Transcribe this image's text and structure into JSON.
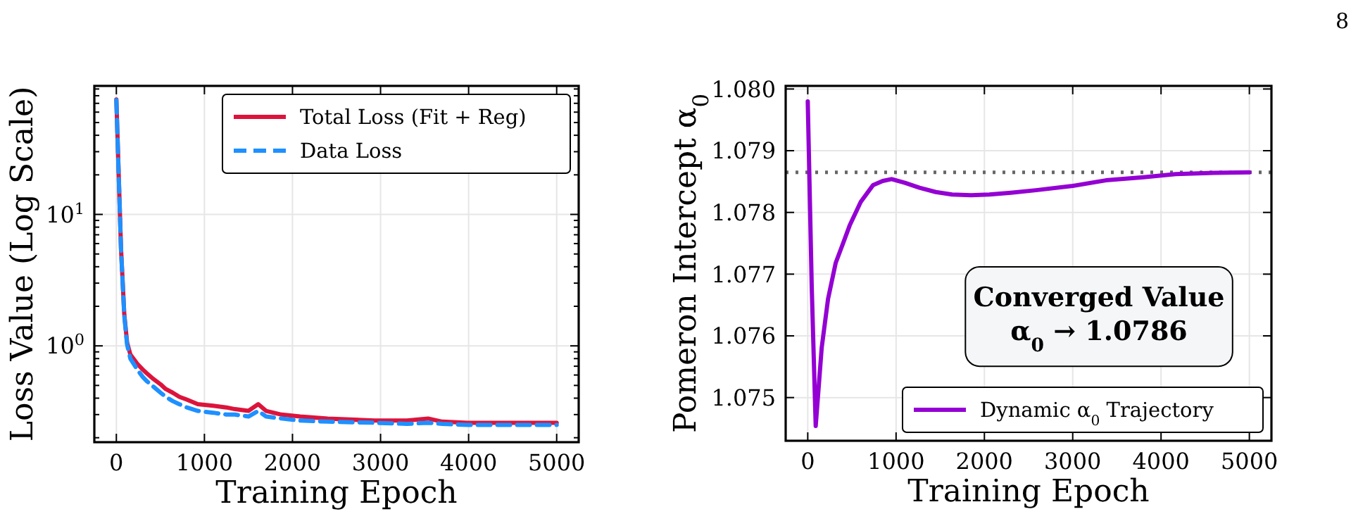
{
  "chart_data": [
    {
      "type": "line",
      "xlabel": "Training Epoch",
      "ylabel": "Loss Value (Log Scale)",
      "log": "y",
      "grid": true,
      "legend": "top right",
      "annotations": [
        "8"
      ],
      "xlim": [
        -250,
        5250
      ],
      "ylim": [
        0.185,
        95
      ],
      "xticks": [
        0,
        1000,
        2000,
        3000,
        4000,
        5000
      ],
      "yticks": [
        {
          "value": 0.2,
          "label": null
        },
        {
          "value": 0.3,
          "label": null
        },
        {
          "value": 0.4,
          "label": null
        },
        {
          "value": 0.5,
          "label": null
        },
        {
          "value": 0.6,
          "label": null
        },
        {
          "value": 0.7,
          "label": null
        },
        {
          "value": 0.8,
          "label": null
        },
        {
          "value": 0.9,
          "label": null
        },
        {
          "value": 1,
          "label": "10$^{0}$"
        },
        {
          "value": 2,
          "label": null
        },
        {
          "value": 3,
          "label": null
        },
        {
          "value": 4,
          "label": null
        },
        {
          "value": 5,
          "label": null
        },
        {
          "value": 6,
          "label": null
        },
        {
          "value": 7,
          "label": null
        },
        {
          "value": 8,
          "label": null
        },
        {
          "value": 9,
          "label": null
        },
        {
          "value": 10,
          "label": "10$^{1}$"
        },
        {
          "value": 20,
          "label": null
        },
        {
          "value": 30,
          "label": null
        },
        {
          "value": 40,
          "label": null
        },
        {
          "value": 50,
          "label": null
        },
        {
          "value": 60,
          "label": null
        },
        {
          "value": 70,
          "label": null
        },
        {
          "value": 80,
          "label": null
        },
        {
          "value": 90,
          "label": null
        }
      ],
      "series": [
        {
          "name": "Total Loss (Fit + Reg)",
          "color": "#dc143c",
          "line_style": "solid",
          "x": [
            0,
            53,
            90,
            122,
            159,
            238,
            300,
            344,
            420,
            502,
            560,
            640,
            714,
            800,
            925,
            1100,
            1250,
            1347,
            1500,
            1611,
            1700,
            1875,
            2086,
            2400,
            2931,
            3300,
            3539,
            3700,
            3988,
            4500,
            5000
          ],
          "values": [
            75,
            5.5,
            1.74,
            1.06,
            0.86,
            0.73,
            0.66,
            0.62,
            0.56,
            0.51,
            0.47,
            0.44,
            0.41,
            0.39,
            0.36,
            0.35,
            0.34,
            0.33,
            0.32,
            0.36,
            0.32,
            0.3,
            0.29,
            0.28,
            0.27,
            0.27,
            0.28,
            0.265,
            0.26,
            0.26,
            0.26
          ]
        },
        {
          "name": "Data Loss",
          "color": "#1e90ff",
          "line_style": "dashed",
          "x": [
            0,
            53,
            90,
            122,
            159,
            238,
            300,
            344,
            420,
            502,
            560,
            640,
            714,
            800,
            925,
            1100,
            1250,
            1347,
            1500,
            1611,
            1700,
            1875,
            2086,
            2400,
            2931,
            3300,
            3539,
            3700,
            3988,
            4500,
            5000
          ],
          "values": [
            74,
            5.4,
            1.7,
            1.02,
            0.8,
            0.66,
            0.58,
            0.54,
            0.49,
            0.44,
            0.41,
            0.38,
            0.36,
            0.34,
            0.32,
            0.31,
            0.3,
            0.3,
            0.29,
            0.32,
            0.29,
            0.28,
            0.27,
            0.265,
            0.26,
            0.255,
            0.26,
            0.255,
            0.25,
            0.25,
            0.25
          ]
        }
      ]
    },
    {
      "type": "line",
      "xlabel": "Training Epoch",
      "ylabel": "Pomeron Intercept α$_{0}$",
      "grid": true,
      "legend": "bottom right",
      "annotations": [
        "Converged Value",
        "α$_{0}$ → 1.0786"
      ],
      "xlim": [
        -250,
        5250
      ],
      "ylim": [
        1.0743,
        1.08005
      ],
      "xticks": [
        0,
        1000,
        2000,
        3000,
        4000,
        5000
      ],
      "yticks": [
        {
          "value": 1.075,
          "label": "1.075"
        },
        {
          "value": 1.076,
          "label": "1.076"
        },
        {
          "value": 1.077,
          "label": "1.077"
        },
        {
          "value": 1.078,
          "label": "1.078"
        },
        {
          "value": 1.079,
          "label": "1.079"
        },
        {
          "value": 1.08,
          "label": "1.080"
        }
      ],
      "ref_lines": [
        {
          "axis": "y",
          "value": 1.07865,
          "color": "#666666",
          "line_style": "dotted"
        }
      ],
      "series": [
        {
          "name": "Dynamic α$_{0}$ Trajectory",
          "color": "#9400d3",
          "line_style": "solid",
          "x": [
            0,
            45,
            90,
            158,
            230,
            316,
            400,
            475,
            600,
            738,
            849,
            949,
            1100,
            1265,
            1450,
            1634,
            1850,
            2056,
            2300,
            2584,
            3000,
            3376,
            3800,
            4167,
            4600,
            5000
          ],
          "values": [
            1.0798,
            1.0768,
            1.07454,
            1.07581,
            1.0766,
            1.07718,
            1.0775,
            1.07779,
            1.07817,
            1.07844,
            1.07851,
            1.07854,
            1.07848,
            1.0784,
            1.07833,
            1.07829,
            1.07828,
            1.07829,
            1.07832,
            1.07836,
            1.07843,
            1.07852,
            1.07857,
            1.07862,
            1.07864,
            1.07865
          ]
        }
      ]
    }
  ]
}
